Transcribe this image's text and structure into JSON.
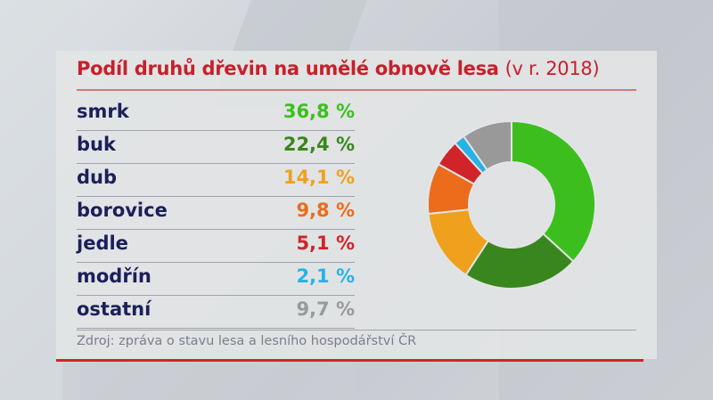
{
  "title": {
    "main": "Podíl druhů dřevin na umělé obnově lesa",
    "sub": "(v r. 2018)"
  },
  "rows": [
    {
      "label": "smrk",
      "value": "36,8 %",
      "color": "#3cbf1e"
    },
    {
      "label": "buk",
      "value": "22,4 %",
      "color": "#3a861e"
    },
    {
      "label": "dub",
      "value": "14,1 %",
      "color": "#efa11e"
    },
    {
      "label": "borovice",
      "value": "9,8 %",
      "color": "#ec6c1c"
    },
    {
      "label": "jedle",
      "value": "5,1 %",
      "color": "#d0232a"
    },
    {
      "label": "modřín",
      "value": "2,1 %",
      "color": "#27b2e6"
    },
    {
      "label": "ostatní",
      "value": "9,7 %",
      "color": "#999999"
    }
  ],
  "source": "Zdroj: zpráva o stavu lesa a lesního hospodářství ČR",
  "colors": {
    "title": "#c8202a",
    "label": "#1b1f5a",
    "accent_line": "#d2232a"
  },
  "chart_data": {
    "type": "pie",
    "subtype": "donut",
    "title": "Podíl druhů dřevin na umělé obnově lesa (v r. 2018)",
    "categories": [
      "smrk",
      "buk",
      "dub",
      "borovice",
      "jedle",
      "modřín",
      "ostatní"
    ],
    "values": [
      36.8,
      22.4,
      14.1,
      9.8,
      5.1,
      2.1,
      9.7
    ],
    "unit": "%",
    "colors": [
      "#3cbf1e",
      "#3a861e",
      "#efa11e",
      "#ec6c1c",
      "#d0232a",
      "#27b2e6",
      "#999999"
    ],
    "start_angle": "12 o'clock",
    "direction": "clockwise",
    "legend": "table at left",
    "source": "Zdroj: zpráva o stavu lesa a lesního hospodářství ČR"
  }
}
